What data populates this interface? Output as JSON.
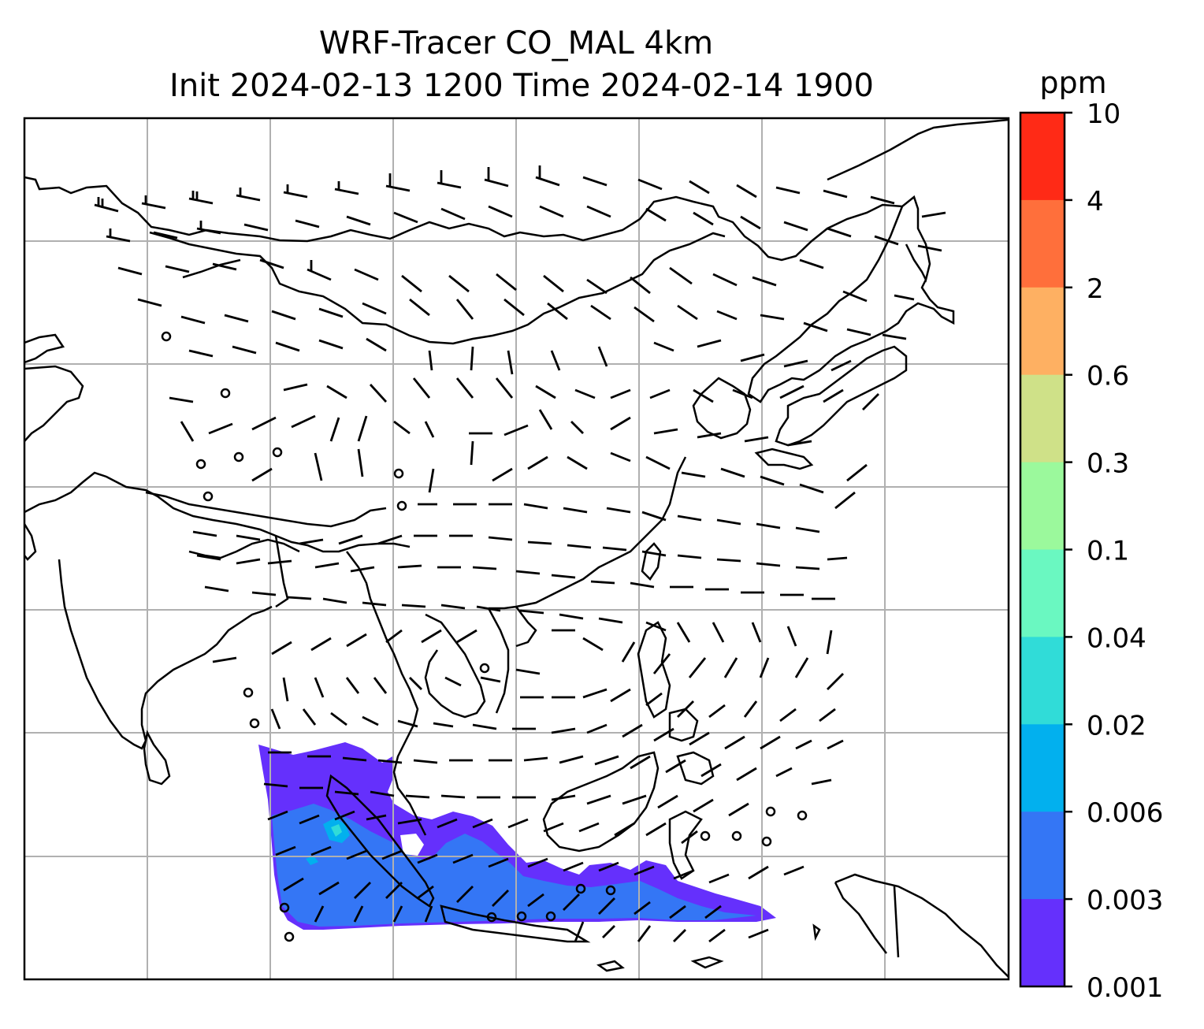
{
  "title": {
    "line1": "WRF-Tracer CO_MAL 4km",
    "line2": "Init 2024-02-13 1200 Time 2024-02-14 1900"
  },
  "colorbar": {
    "unit": "ppm",
    "ticks": [
      "10",
      "4",
      "2",
      "0.6",
      "0.3",
      "0.1",
      "0.04",
      "0.02",
      "0.006",
      "0.003",
      "0.001"
    ],
    "colors": [
      "#ff2a16",
      "#ff6f3b",
      "#feb062",
      "#cfe188",
      "#9bf99c",
      "#6af8c1",
      "#30dcd8",
      "#02b0ee",
      "#3476f5",
      "#6530fc"
    ]
  },
  "map": {
    "gridlines": true,
    "coastline_color": "#000000",
    "plume_levels": [
      "0.001-0.003",
      "0.003-0.006",
      "0.006-0.02",
      "0.02-0.04"
    ]
  }
}
